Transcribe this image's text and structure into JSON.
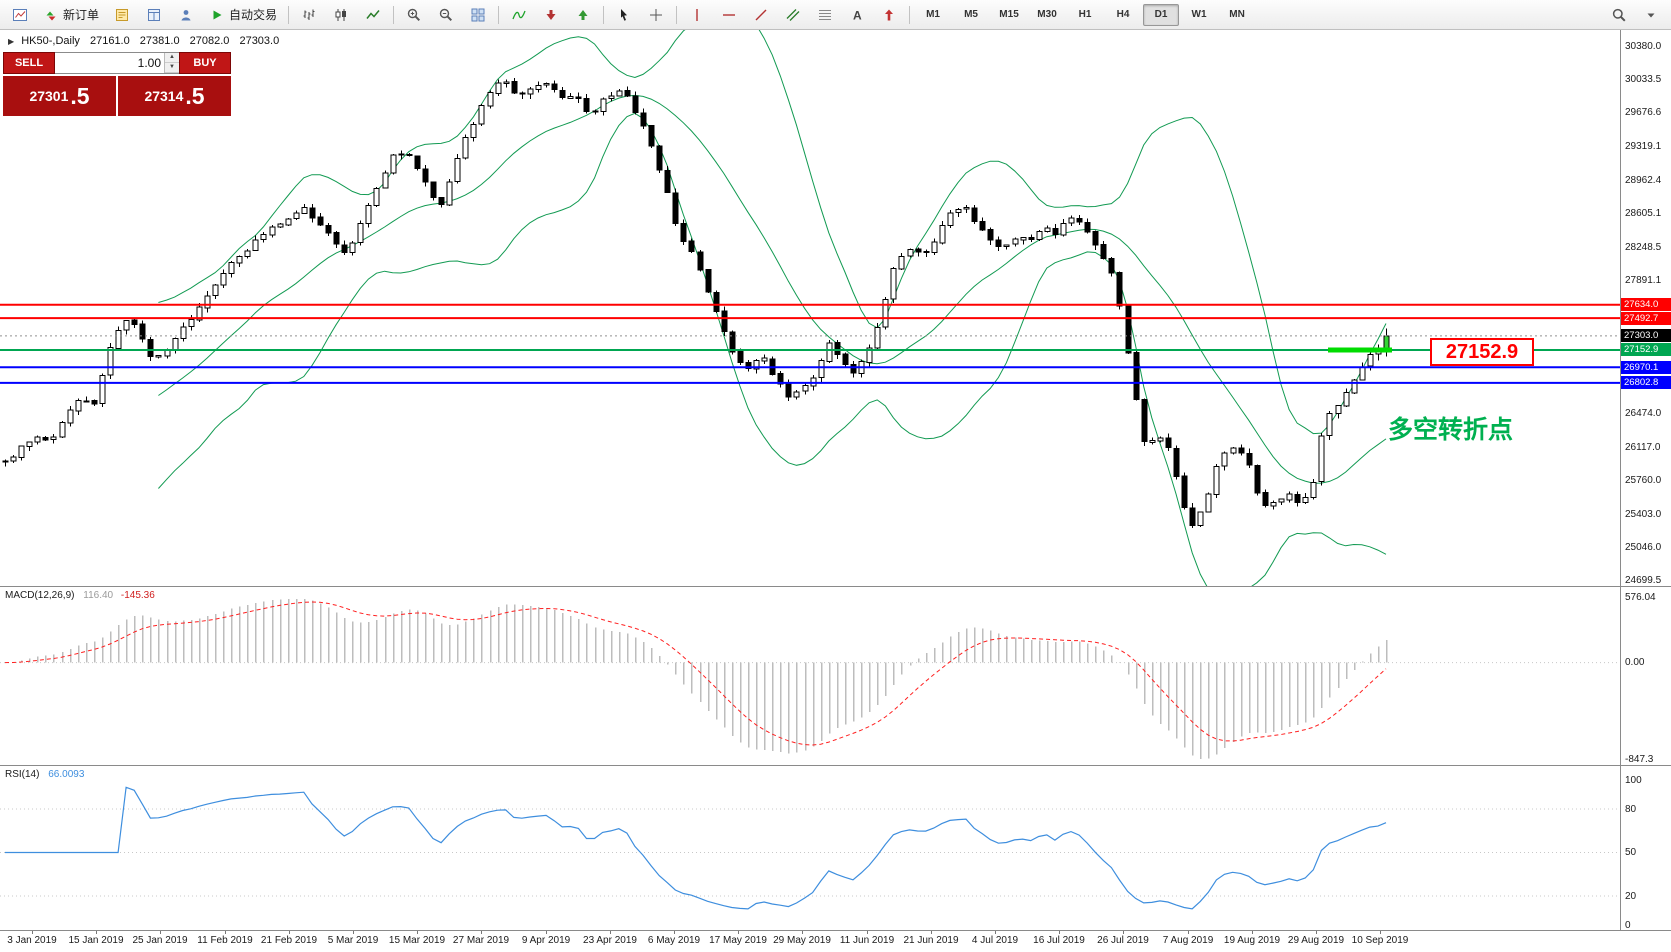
{
  "toolbar": {
    "items": [
      {
        "type": "icon",
        "name": "new-chart-icon"
      },
      {
        "type": "button",
        "name": "new-order-button",
        "icon": "new-order-icon",
        "label": "新订单"
      },
      {
        "type": "icon",
        "name": "market-watch-icon"
      },
      {
        "type": "icon",
        "name": "data-window-icon"
      },
      {
        "type": "icon",
        "name": "navigator-icon"
      },
      {
        "type": "button",
        "name": "autotrading-button",
        "icon": "autotrading-icon",
        "label": "自动交易"
      },
      {
        "type": "divider"
      },
      {
        "type": "icon",
        "name": "bar-chart-icon"
      },
      {
        "type": "icon",
        "name": "candlestick-chart-icon"
      },
      {
        "type": "icon",
        "name": "line-chart-icon"
      },
      {
        "type": "divider"
      },
      {
        "type": "icon",
        "name": "zoom-in-icon"
      },
      {
        "type": "icon",
        "name": "zoom-out-icon"
      },
      {
        "type": "icon",
        "name": "tile-windows-icon"
      },
      {
        "type": "divider"
      },
      {
        "type": "icon",
        "name": "indicators-icon"
      },
      {
        "type": "icon",
        "name": "period-down-icon"
      },
      {
        "type": "icon",
        "name": "period-up-icon"
      },
      {
        "type": "divider"
      },
      {
        "type": "icon",
        "name": "cursor-icon"
      },
      {
        "type": "icon",
        "name": "crosshair-icon"
      },
      {
        "type": "divider"
      },
      {
        "type": "icon",
        "name": "vertical-line-icon"
      },
      {
        "type": "icon",
        "name": "horizontal-line-icon"
      },
      {
        "type": "icon",
        "name": "trendline-icon"
      },
      {
        "type": "icon",
        "name": "channel-icon"
      },
      {
        "type": "icon",
        "name": "fibonacci-icon"
      },
      {
        "type": "icon",
        "name": "text-label-icon"
      },
      {
        "type": "icon",
        "name": "arrows-icon"
      },
      {
        "type": "divider"
      }
    ],
    "timeframes": [
      "M1",
      "M5",
      "M15",
      "M30",
      "H1",
      "H4",
      "D1",
      "W1",
      "MN"
    ],
    "active_timeframe": "D1",
    "right_items": [
      {
        "type": "icon",
        "name": "search-icon"
      },
      {
        "type": "icon",
        "name": "dropdown-caret-icon"
      }
    ]
  },
  "header": {
    "symbol": "HK50-,Daily",
    "open": "27161.0",
    "high": "27381.0",
    "low": "27082.0",
    "close": "27303.0"
  },
  "trade_panel": {
    "sell_label": "SELL",
    "buy_label": "BUY",
    "volume": "1.00",
    "sell_price": "27301",
    "sell_pips": ".5",
    "buy_price": "27314",
    "buy_pips": ".5"
  },
  "annotations": {
    "turning_point_text": "多空转折点",
    "price_tag_text": "27152.9"
  },
  "price_axis": {
    "labels": [
      {
        "label": "30380.0",
        "price": 30380.0,
        "style": "plain"
      },
      {
        "label": "30033.5",
        "price": 30033.5,
        "style": "plain"
      },
      {
        "label": "29676.6",
        "price": 29676.6,
        "style": "plain"
      },
      {
        "label": "29319.1",
        "price": 29319.1,
        "style": "plain"
      },
      {
        "label": "28962.4",
        "price": 28962.4,
        "style": "plain"
      },
      {
        "label": "28605.1",
        "price": 28605.1,
        "style": "plain"
      },
      {
        "label": "28248.5",
        "price": 28248.5,
        "style": "plain"
      },
      {
        "label": "27891.1",
        "price": 27891.1,
        "style": "plain"
      },
      {
        "label": "27634.0",
        "price": 27634.0,
        "style": "red"
      },
      {
        "label": "27492.7",
        "price": 27492.7,
        "style": "red"
      },
      {
        "label": "27303.0",
        "price": 27303.0,
        "style": "black"
      },
      {
        "label": "27152.9",
        "price": 27152.9,
        "style": "green"
      },
      {
        "label": "26970.1",
        "price": 26970.1,
        "style": "blue"
      },
      {
        "label": "26802.8",
        "price": 26802.8,
        "style": "blue"
      },
      {
        "label": "26474.0",
        "price": 26474.0,
        "style": "plain"
      },
      {
        "label": "26117.0",
        "price": 26117.0,
        "style": "plain"
      },
      {
        "label": "25760.0",
        "price": 25760.0,
        "style": "plain"
      },
      {
        "label": "25403.0",
        "price": 25403.0,
        "style": "plain"
      },
      {
        "label": "25046.0",
        "price": 25046.0,
        "style": "plain"
      },
      {
        "label": "24699.5",
        "price": 24699.5,
        "style": "plain"
      }
    ]
  },
  "macd_panel": {
    "name": "MACD(12,26,9)",
    "value_main": "116.40",
    "value_signal": "-145.36",
    "axis_labels": [
      "576.04",
      "0.00",
      "-847.3"
    ],
    "axis_values": [
      576.04,
      0,
      -847.3
    ]
  },
  "rsi_panel": {
    "name": "RSI(14)",
    "value": "66.0093",
    "axis_labels": [
      "100",
      "80",
      "50",
      "20",
      "0"
    ],
    "axis_values": [
      100,
      80,
      50,
      20,
      0
    ],
    "levels": [
      80,
      50,
      20
    ]
  },
  "time_axis": {
    "dates": [
      "3 Jan 2019",
      "15 Jan 2019",
      "25 Jan 2019",
      "11 Feb 2019",
      "21 Feb 2019",
      "5 Mar 2019",
      "15 Mar 2019",
      "27 Mar 2019",
      "9 Apr 2019",
      "23 Apr 2019",
      "6 May 2019",
      "17 May 2019",
      "29 May 2019",
      "11 Jun 2019",
      "21 Jun 2019",
      "4 Jul 2019",
      "16 Jul 2019",
      "26 Jul 2019",
      "7 Aug 2019",
      "19 Aug 2019",
      "29 Aug 2019",
      "10 Sep 2019"
    ]
  },
  "colors": {
    "red_line": "#FF0000",
    "blue_line": "#0000FF",
    "green_line": "#00A651",
    "segment_green": "#00DC00",
    "annotation_green": "#00B050",
    "bull": "#FFFFFF",
    "bear": "#000000",
    "last_candle": "#35D435",
    "bollinger": "#129A52",
    "macd_hist": "#BDBDBD",
    "macd_signal": "#FF2020",
    "rsi_line": "#3E8EDE",
    "trade_red": "#C01616",
    "trade_red_dark": "#A80F0F",
    "current_price_line": "#909090"
  },
  "chart_data": {
    "type": "candlestick",
    "symbol": "HK50",
    "timeframe": "Daily",
    "title": "HK50-,Daily",
    "last_ohlc": {
      "open": 27161.0,
      "high": 27381.0,
      "low": 27082.0,
      "close": 27303.0
    },
    "bid": 27301.5,
    "ask": 27314.5,
    "candle_count": 172,
    "seed": 20190910,
    "price_axis_range": {
      "top_label": 30380.0,
      "bottom_label": 24699.5
    },
    "price_path": [
      [
        0,
        25950
      ],
      [
        14,
        26100
      ],
      [
        28,
        26250
      ],
      [
        42,
        26150
      ],
      [
        55,
        26400
      ],
      [
        70,
        26650
      ],
      [
        84,
        26550
      ],
      [
        95,
        27100
      ],
      [
        106,
        27380
      ],
      [
        116,
        27520
      ],
      [
        126,
        27300
      ],
      [
        138,
        27020
      ],
      [
        150,
        27160
      ],
      [
        162,
        27360
      ],
      [
        176,
        27520
      ],
      [
        190,
        27760
      ],
      [
        205,
        28000
      ],
      [
        220,
        28160
      ],
      [
        235,
        28320
      ],
      [
        250,
        28460
      ],
      [
        265,
        28570
      ],
      [
        280,
        28660
      ],
      [
        294,
        28500
      ],
      [
        308,
        28300
      ],
      [
        320,
        28160
      ],
      [
        334,
        28580
      ],
      [
        348,
        28900
      ],
      [
        364,
        29280
      ],
      [
        379,
        29230
      ],
      [
        394,
        28900
      ],
      [
        406,
        28660
      ],
      [
        420,
        29120
      ],
      [
        434,
        29500
      ],
      [
        449,
        29840
      ],
      [
        464,
        30040
      ],
      [
        478,
        29860
      ],
      [
        492,
        29950
      ],
      [
        506,
        30010
      ],
      [
        519,
        29810
      ],
      [
        533,
        29860
      ],
      [
        547,
        29660
      ],
      [
        562,
        29850
      ],
      [
        577,
        29950
      ],
      [
        591,
        29650
      ],
      [
        604,
        29300
      ],
      [
        617,
        28900
      ],
      [
        630,
        28360
      ],
      [
        644,
        28160
      ],
      [
        657,
        27760
      ],
      [
        669,
        27420
      ],
      [
        681,
        27060
      ],
      [
        694,
        26960
      ],
      [
        707,
        27100
      ],
      [
        719,
        26860
      ],
      [
        732,
        26660
      ],
      [
        744,
        26760
      ],
      [
        757,
        26860
      ],
      [
        769,
        27240
      ],
      [
        781,
        27060
      ],
      [
        794,
        26900
      ],
      [
        807,
        27150
      ],
      [
        819,
        27550
      ],
      [
        831,
        28090
      ],
      [
        844,
        28240
      ],
      [
        857,
        28150
      ],
      [
        869,
        28340
      ],
      [
        881,
        28600
      ],
      [
        894,
        28700
      ],
      [
        907,
        28500
      ],
      [
        919,
        28310
      ],
      [
        931,
        28260
      ],
      [
        944,
        28350
      ],
      [
        957,
        28300
      ],
      [
        969,
        28440
      ],
      [
        981,
        28400
      ],
      [
        994,
        28550
      ],
      [
        1007,
        28500
      ],
      [
        1019,
        28260
      ],
      [
        1031,
        28060
      ],
      [
        1043,
        27520
      ],
      [
        1054,
        26750
      ],
      [
        1064,
        26160
      ],
      [
        1077,
        26210
      ],
      [
        1089,
        26110
      ],
      [
        1099,
        25520
      ],
      [
        1111,
        25260
      ],
      [
        1124,
        25640
      ],
      [
        1136,
        26040
      ],
      [
        1149,
        26100
      ],
      [
        1161,
        25950
      ],
      [
        1174,
        25460
      ],
      [
        1186,
        25560
      ],
      [
        1199,
        25600
      ],
      [
        1211,
        25510
      ],
      [
        1221,
        25690
      ],
      [
        1231,
        26340
      ],
      [
        1241,
        26540
      ],
      [
        1251,
        26650
      ],
      [
        1261,
        26840
      ],
      [
        1271,
        27040
      ],
      [
        1281,
        27161
      ],
      [
        1290,
        27303
      ]
    ],
    "hlines": [
      {
        "price": 27634.0,
        "color": "#FF0000",
        "width": 2,
        "style": "solid"
      },
      {
        "price": 27492.7,
        "color": "#FF0000",
        "width": 2,
        "style": "solid"
      },
      {
        "price": 27303.0,
        "color": "#909090",
        "width": 1,
        "style": "dotted"
      },
      {
        "price": 27152.9,
        "color": "#00A651",
        "width": 2,
        "style": "solid"
      },
      {
        "price": 26970.1,
        "color": "#0000FF",
        "width": 2,
        "style": "solid"
      },
      {
        "price": 26802.8,
        "color": "#0000FF",
        "width": 2,
        "style": "solid"
      }
    ],
    "highlight_segment": {
      "price": 27152.9,
      "color": "#00DC00",
      "width": 5
    },
    "bollinger": {
      "period": 20,
      "deviation": 2
    },
    "macd": {
      "fast": 12,
      "slow": 26,
      "signal": 9,
      "current_main": 116.4,
      "current_signal": -145.36,
      "scale_max": 576.04,
      "scale_min": -847.3
    },
    "rsi": {
      "period": 14,
      "current": 66.0093,
      "scale": [
        0,
        100
      ]
    }
  }
}
